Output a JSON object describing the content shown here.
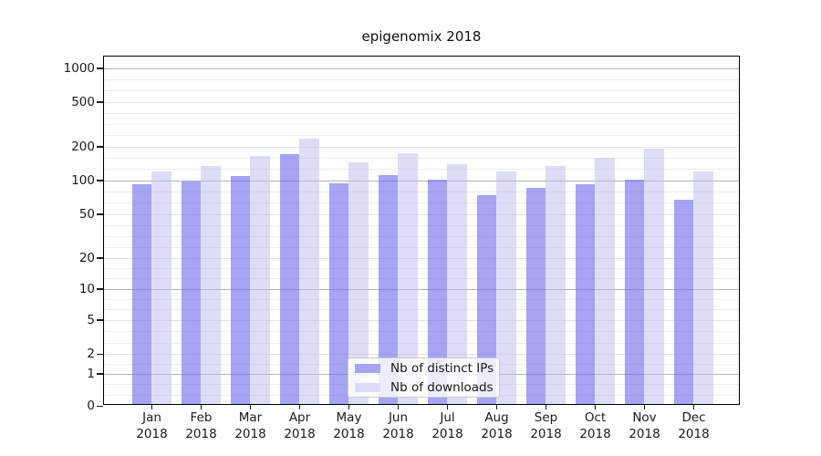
{
  "title": "epigenomix 2018",
  "chart_data": {
    "type": "bar",
    "title": "epigenomix 2018",
    "x_categories": [
      "Jan",
      "Feb",
      "Mar",
      "Apr",
      "May",
      "Jun",
      "Jul",
      "Aug",
      "Sep",
      "Oct",
      "Nov",
      "Dec"
    ],
    "x_year": "2018",
    "series": [
      {
        "name": "Nb of distinct IPs",
        "color": "#a6a6f0",
        "fill_rgba": "rgba(110,110,235,0.62)",
        "values": [
          88,
          93,
          104,
          165,
          90,
          107,
          98,
          71,
          82,
          88,
          98,
          64
        ]
      },
      {
        "name": "Nb of downloads",
        "color": "#dcdcf8",
        "fill_rgba": "rgba(187,187,242,0.5)",
        "values": [
          116,
          130,
          158,
          228,
          139,
          166,
          135,
          115,
          130,
          152,
          185,
          115
        ]
      }
    ],
    "y_ticks": [
      0,
      1,
      2,
      5,
      10,
      20,
      50,
      100,
      200,
      500,
      1000
    ],
    "y_scale": "symlog",
    "ylim": [
      0,
      1300
    ],
    "grid": true,
    "grid_decade_color": "#b4b4b4",
    "grid_minor_color": "#ededed",
    "grid_major_color": "#e3e3e3",
    "legend_position": "lower center",
    "xlabel": "",
    "ylabel": ""
  }
}
